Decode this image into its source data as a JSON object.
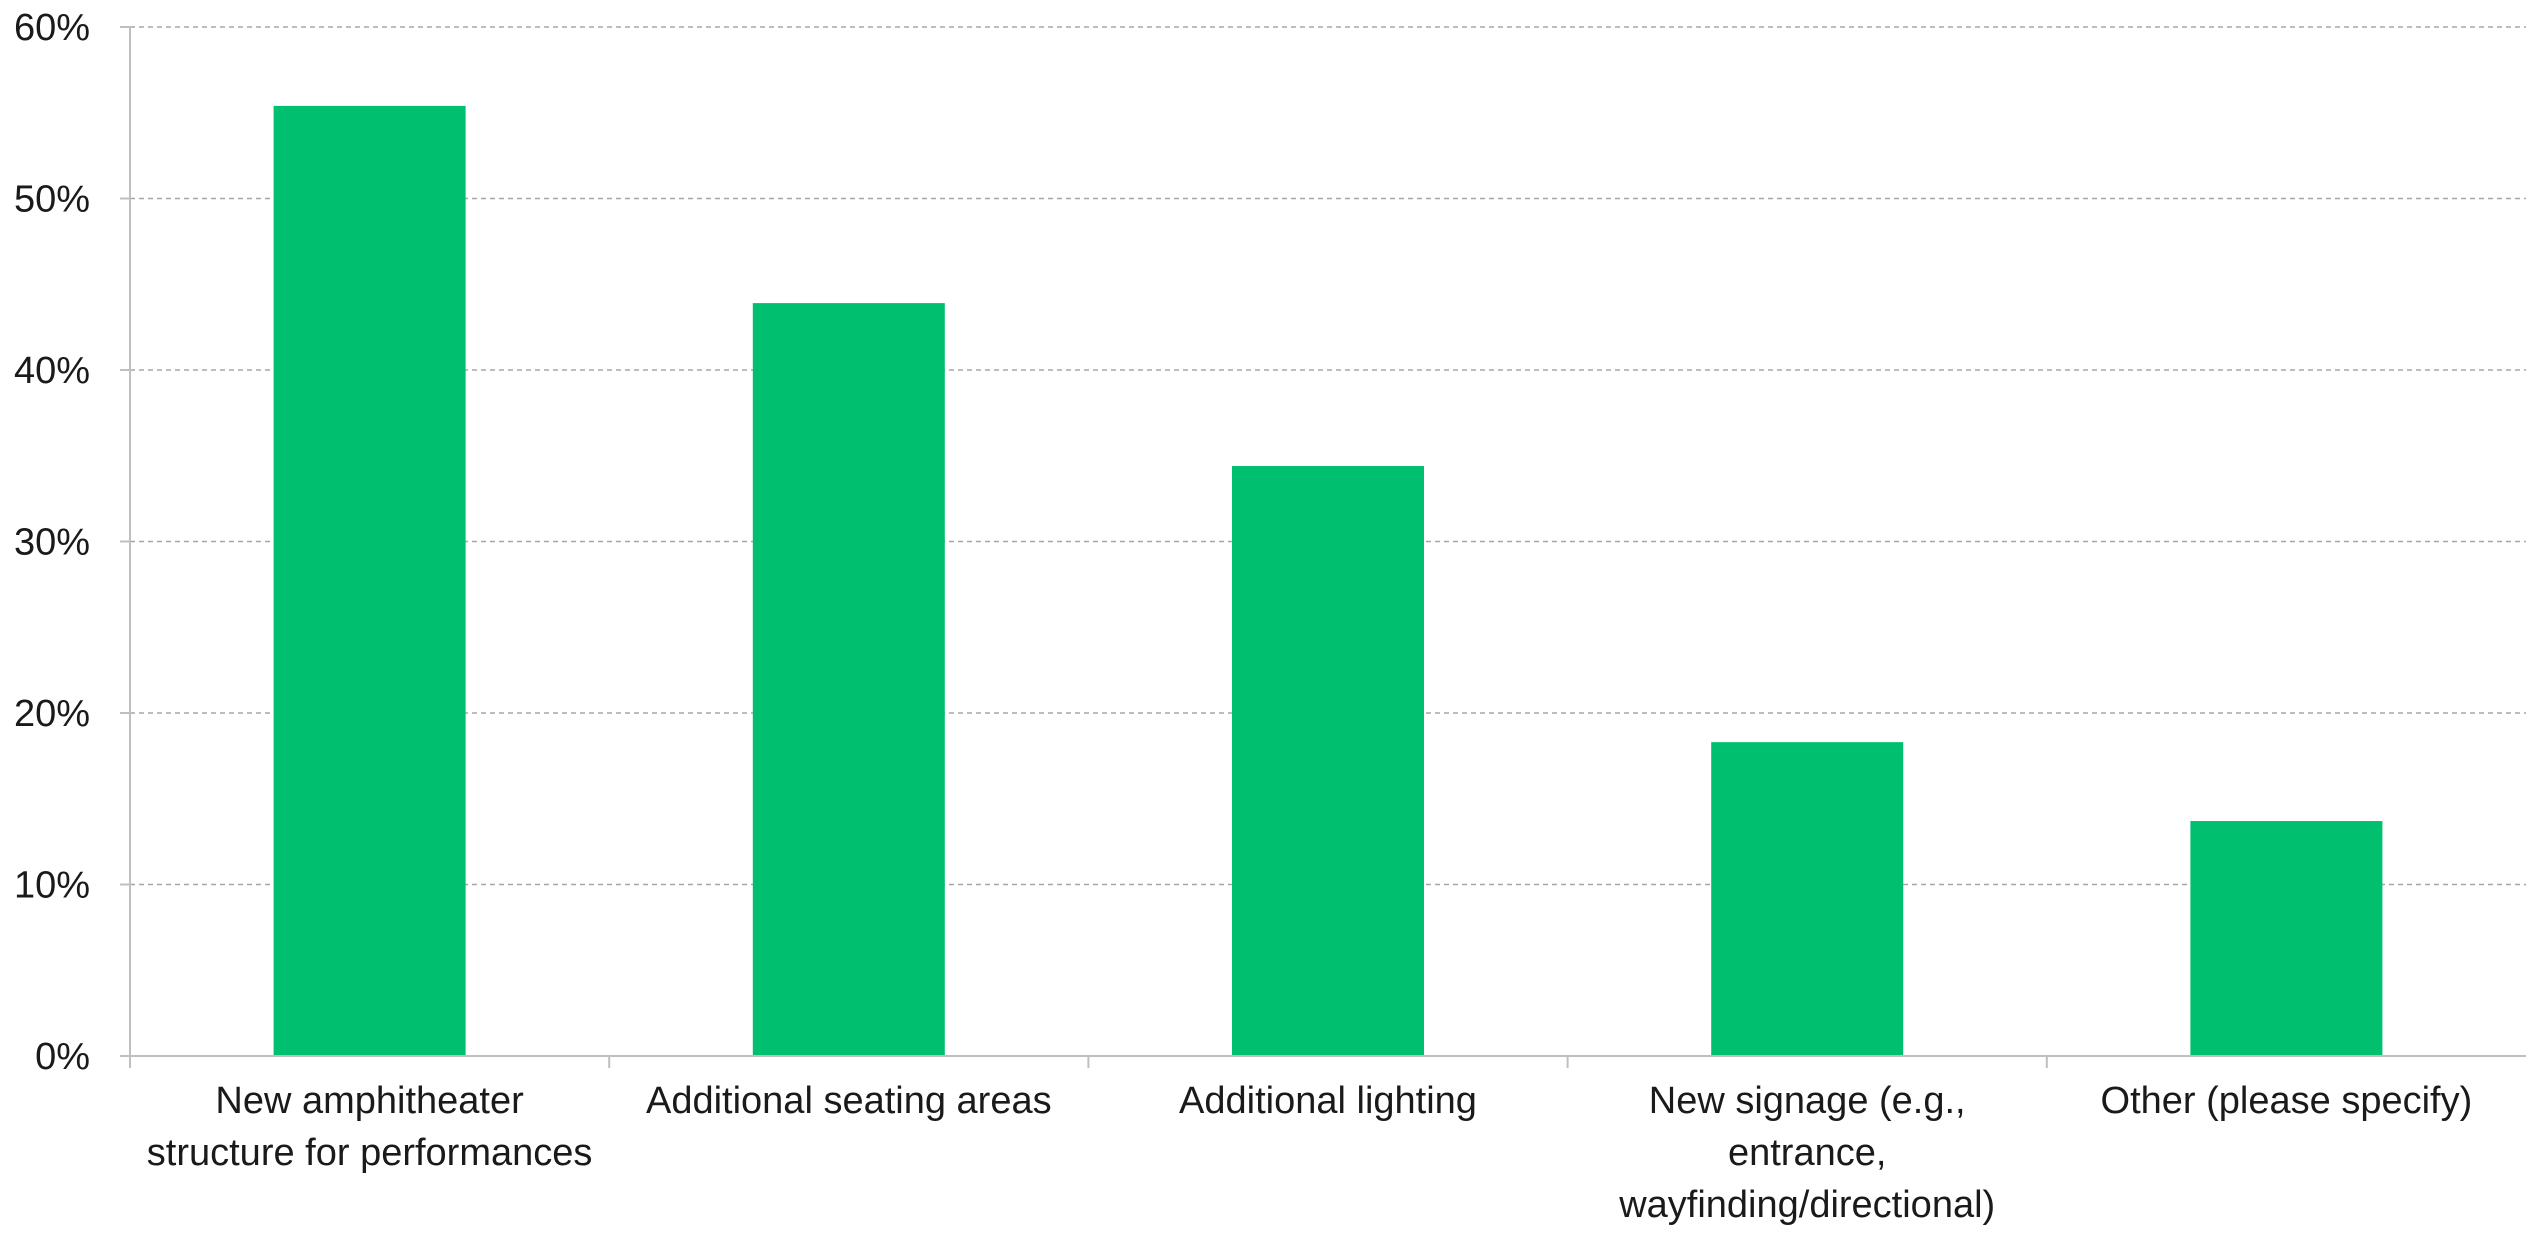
{
  "chart_data": {
    "type": "bar",
    "title": "",
    "xlabel": "",
    "ylabel": "",
    "categories": [
      "New amphitheater structure for performances",
      "Additional seating areas",
      "Additional lighting",
      "New signage (e.g., entrance, wayfinding/directional)",
      "Other (please specify)"
    ],
    "category_lines": [
      [
        "New amphitheater",
        "structure for performances"
      ],
      [
        "Additional seating areas"
      ],
      [
        "Additional lighting"
      ],
      [
        "New signage (e.g.,",
        "entrance,",
        "wayfinding/directional)"
      ],
      [
        "Other (please specify)"
      ]
    ],
    "values": [
      55.4,
      43.9,
      34.4,
      18.3,
      13.7
    ],
    "value_unit": "%",
    "ylim": [
      0,
      60
    ],
    "yticks": [
      0,
      10,
      20,
      30,
      40,
      50,
      60
    ],
    "ytick_labels": [
      "0%",
      "10%",
      "20%",
      "30%",
      "40%",
      "50%",
      "60%"
    ],
    "grid": true,
    "legend": "none",
    "bar_color": "#00BF6F",
    "grid_color": "#a6a6a6",
    "axis_color": "#bfbfbf"
  }
}
